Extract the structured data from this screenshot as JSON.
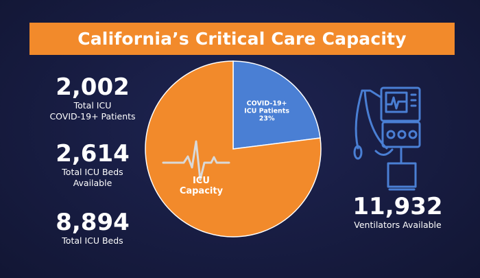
{
  "banner": {
    "title": "California’s Critical Care Capacity"
  },
  "stats": [
    {
      "value": "2,002",
      "label": [
        "Total ICU",
        "COVID-19+ Patients"
      ]
    },
    {
      "value": "2,614",
      "label": [
        "Total ICU Beds",
        "Available"
      ]
    },
    {
      "value": "8,894",
      "label": [
        "Total ICU Beds"
      ]
    }
  ],
  "ventilators": {
    "value": "11,932",
    "label": "Ventilators Available"
  },
  "icons": {
    "pie_center": "heartbeat-line-icon",
    "right": "ventilator-icon"
  },
  "colors": {
    "background": "#1c2250",
    "banner": "#f28a2b",
    "icu_capacity": "#f28a2b",
    "covid_patients": "#4a7fd4",
    "icon": "#4a7fd4"
  },
  "chart_data": {
    "type": "pie",
    "title": "",
    "slices": [
      {
        "label": [
          "COVID-19+",
          "ICU Patients",
          "23%"
        ],
        "value": 23,
        "color": "#4a7fd4"
      },
      {
        "label": [
          "ICU",
          "Capacity"
        ],
        "value": 77,
        "color": "#f28a2b"
      }
    ]
  }
}
